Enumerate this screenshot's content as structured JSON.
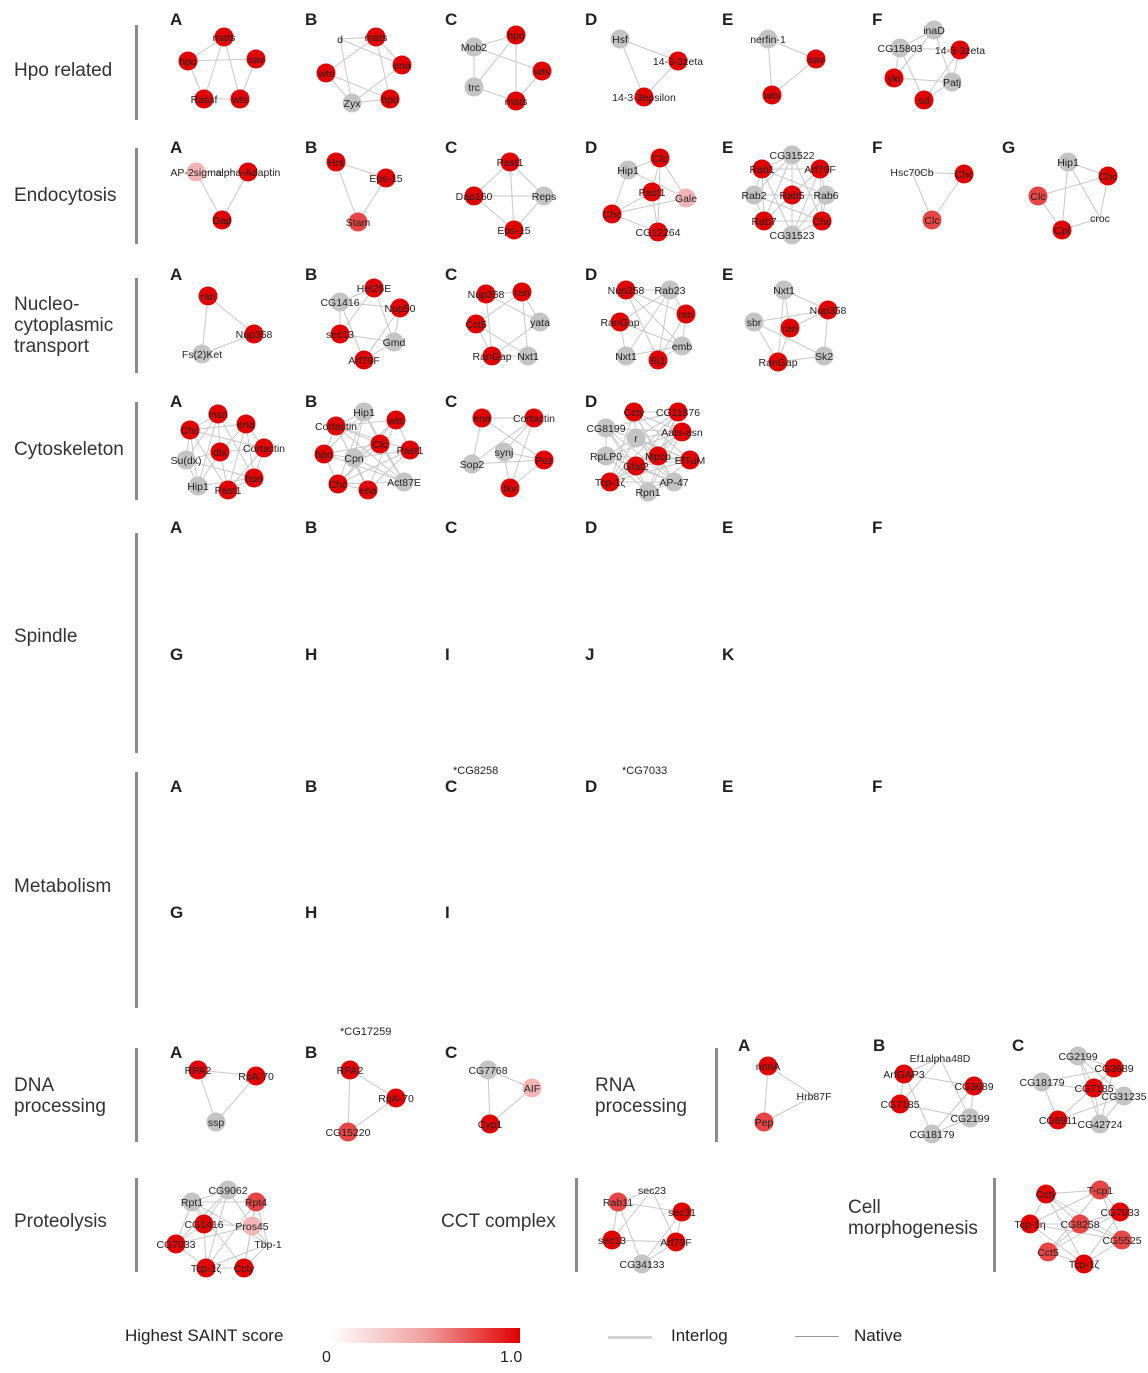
{
  "categories": {
    "hpo": "Hpo related",
    "endocytosis": "Endocytosis",
    "nucleo": [
      "Nucleo-",
      "cytoplasmic",
      "transport"
    ],
    "cytoskeleton": "Cytoskeleton",
    "spindle": "Spindle",
    "metabolism": "Metabolism",
    "dna": [
      "DNA",
      "processing"
    ],
    "rna": [
      "RNA",
      "processing"
    ],
    "proteolysis": "Proteolysis",
    "cct": "CCT complex",
    "cellmorph": [
      "Cell",
      "morphogenesis"
    ]
  },
  "panel_letters": {
    "hpo": [
      "A",
      "B",
      "C",
      "D",
      "E",
      "F"
    ],
    "endocytosis": [
      "A",
      "B",
      "C",
      "D",
      "E",
      "F",
      "G"
    ],
    "nucleo": [
      "A",
      "B",
      "C",
      "D",
      "E"
    ],
    "cytoskeleton": [
      "A",
      "B",
      "C",
      "D"
    ],
    "spindle1": [
      "A",
      "B",
      "C",
      "D",
      "E",
      "F"
    ],
    "spindle2": [
      "G",
      "H",
      "I",
      "J",
      "K"
    ],
    "metab1": [
      "A",
      "B",
      "C",
      "D",
      "E",
      "F"
    ],
    "metab2": [
      "G",
      "H",
      "I"
    ],
    "dna": [
      "A",
      "B",
      "C"
    ],
    "rna": [
      "A",
      "B",
      "C"
    ]
  },
  "footnotes": {
    "spindle_I": "*CG8258",
    "spindle_J": "*CG7033",
    "metab_H": "*CG17259"
  },
  "networks": [
    {
      "id": "hpo-A",
      "nodes": [
        [
          "mats",
          "s"
        ],
        [
          "hpo",
          "s"
        ],
        [
          "sav",
          "s"
        ],
        [
          "Rassf",
          "s"
        ],
        [
          "wts",
          "s"
        ]
      ]
    },
    {
      "id": "hpo-B",
      "nodes": [
        [
          "d",
          "n"
        ],
        [
          "mats",
          "s"
        ],
        [
          "wts",
          "s"
        ],
        [
          "ena",
          "s"
        ],
        [
          "Zyx",
          "g"
        ],
        [
          "hpo",
          "s"
        ]
      ]
    },
    {
      "id": "hpo-C",
      "nodes": [
        [
          "hpo",
          "s"
        ],
        [
          "Mob2",
          "g"
        ],
        [
          "wts",
          "s"
        ],
        [
          "trc",
          "g"
        ],
        [
          "mats",
          "s"
        ]
      ]
    },
    {
      "id": "hpo-D",
      "nodes": [
        [
          "Hsf",
          "g"
        ],
        [
          "14-3-3zeta",
          "s"
        ],
        [
          "14-3-3epsilon",
          "s"
        ]
      ]
    },
    {
      "id": "hpo-E",
      "nodes": [
        [
          "nerfin-1",
          "g"
        ],
        [
          "sav",
          "s"
        ],
        [
          "wts",
          "s"
        ]
      ]
    },
    {
      "id": "hpo-F",
      "nodes": [
        [
          "inaD",
          "g"
        ],
        [
          "CG15803",
          "g"
        ],
        [
          "14-3-3zeta",
          "s"
        ],
        [
          "yki",
          "s"
        ],
        [
          "Patj",
          "g"
        ],
        [
          "sd",
          "s"
        ]
      ]
    },
    {
      "id": "endo-A",
      "nodes": [
        [
          "AP-2sigma",
          "l"
        ],
        [
          "alpha-Adaptin",
          "s"
        ],
        [
          "Dap",
          "s"
        ]
      ]
    },
    {
      "id": "endo-B",
      "nodes": [
        [
          "Hrs",
          "s"
        ],
        [
          "Eps-15",
          "s"
        ],
        [
          "Stam",
          "m"
        ]
      ]
    },
    {
      "id": "endo-C",
      "nodes": [
        [
          "Past1",
          "s"
        ],
        [
          "Dap160",
          "s"
        ],
        [
          "Reps",
          "g"
        ],
        [
          "Eps-15",
          "s"
        ]
      ]
    },
    {
      "id": "endo-D",
      "nodes": [
        [
          "Hip1",
          "g"
        ],
        [
          "Clc",
          "s"
        ],
        [
          "Past1",
          "s"
        ],
        [
          "Gale",
          "l"
        ],
        [
          "Chc",
          "s"
        ],
        [
          "CG12264",
          "s"
        ]
      ]
    },
    {
      "id": "endo-E",
      "nodes": [
        [
          "CG31522",
          "g"
        ],
        [
          "Rab1",
          "s"
        ],
        [
          "Arf79F",
          "s"
        ],
        [
          "Rab2",
          "g"
        ],
        [
          "Rab5",
          "s"
        ],
        [
          "Rab6",
          "g"
        ],
        [
          "Rab7",
          "s"
        ],
        [
          "Chc",
          "s"
        ],
        [
          "CG31523",
          "g"
        ]
      ]
    },
    {
      "id": "endo-F",
      "nodes": [
        [
          "Hsc70Cb",
          "n"
        ],
        [
          "Chc",
          "s"
        ],
        [
          "Clc",
          "m"
        ]
      ]
    },
    {
      "id": "endo-G",
      "nodes": [
        [
          "Hip1",
          "g"
        ],
        [
          "Chc",
          "s"
        ],
        [
          "Clc",
          "m"
        ],
        [
          "croc",
          "n"
        ],
        [
          "Cpl",
          "s"
        ]
      ]
    },
    {
      "id": "nuc-A",
      "nodes": [
        [
          "ran",
          "s"
        ],
        [
          "Nup358",
          "s"
        ],
        [
          "Fs(2)Ket",
          "g"
        ]
      ]
    },
    {
      "id": "nuc-B",
      "nodes": [
        [
          "Hel25E",
          "s"
        ],
        [
          "CG1416",
          "g"
        ],
        [
          "Nup50",
          "s"
        ],
        [
          "sec13",
          "s"
        ],
        [
          "Gmd",
          "g"
        ],
        [
          "Arf79F",
          "s"
        ]
      ]
    },
    {
      "id": "nuc-C",
      "nodes": [
        [
          "Nup358",
          "s"
        ],
        [
          "ran",
          "s"
        ],
        [
          "Cct5",
          "s"
        ],
        [
          "yata",
          "g"
        ],
        [
          "RanGap",
          "s"
        ],
        [
          "Nxt1",
          "g"
        ]
      ]
    },
    {
      "id": "nuc-D",
      "nodes": [
        [
          "Nup358",
          "s"
        ],
        [
          "Rab23",
          "g"
        ],
        [
          "RanGap",
          "s"
        ],
        [
          "ran",
          "s"
        ],
        [
          "emb",
          "g"
        ],
        [
          "Nxt1",
          "g"
        ],
        [
          "Bj1",
          "s"
        ]
      ]
    },
    {
      "id": "nuc-E",
      "nodes": [
        [
          "Nxt1",
          "g"
        ],
        [
          "Nup358",
          "s"
        ],
        [
          "sbr",
          "g"
        ],
        [
          "ran",
          "s"
        ],
        [
          "RanGap",
          "s"
        ],
        [
          "Sk2",
          "g"
        ]
      ]
    },
    {
      "id": "cyto-A",
      "nodes": [
        [
          "msn",
          "s"
        ],
        [
          "Chc",
          "s"
        ],
        [
          "ena",
          "s"
        ],
        [
          "Su(dx)",
          "g"
        ],
        [
          "dlx",
          "s"
        ],
        [
          "Cortactin",
          "s"
        ],
        [
          "Hip1",
          "g"
        ],
        [
          "hpo",
          "s"
        ],
        [
          "Past1",
          "s"
        ]
      ]
    },
    {
      "id": "cyto-B",
      "nodes": [
        [
          "Hip1",
          "g"
        ],
        [
          "Cortactin",
          "s"
        ],
        [
          "wts",
          "s"
        ],
        [
          "Clc",
          "s"
        ],
        [
          "Cpn",
          "g"
        ],
        [
          "Past1",
          "s"
        ],
        [
          "hpo",
          "s"
        ],
        [
          "Chc",
          "s"
        ],
        [
          "ena",
          "s"
        ],
        [
          "Act87E",
          "g"
        ]
      ]
    },
    {
      "id": "cyto-C",
      "nodes": [
        [
          "ena",
          "s"
        ],
        [
          "Cortactin",
          "s"
        ],
        [
          "synj",
          "g"
        ],
        [
          "Sop2",
          "g"
        ],
        [
          "Pez",
          "s"
        ],
        [
          "tkv",
          "s"
        ]
      ]
    },
    {
      "id": "cyto-D",
      "nodes": [
        [
          "Ccty",
          "s"
        ],
        [
          "CG11876",
          "s"
        ],
        [
          "CG8199",
          "g"
        ],
        [
          "r",
          "g"
        ],
        [
          "Aats-asn",
          "s"
        ],
        [
          "RpLP0",
          "g"
        ],
        [
          "Mpcp",
          "s"
        ],
        [
          "EfTuM",
          "s"
        ],
        [
          "Gfat2",
          "s"
        ],
        [
          "Tcp-1ζ",
          "s"
        ],
        [
          "AP-47",
          "g"
        ],
        [
          "Rpn1",
          "g"
        ]
      ]
    },
    {
      "id": "dna-A",
      "nodes": [
        [
          "RPA2",
          "s"
        ],
        [
          "RpA-70",
          "s"
        ],
        [
          "ssp",
          "g"
        ]
      ]
    },
    {
      "id": "dna-B",
      "nodes": [
        [
          "RPA2",
          "s"
        ],
        [
          "RpA-70",
          "s"
        ],
        [
          "CG15220",
          "m"
        ]
      ]
    },
    {
      "id": "dna-C",
      "nodes": [
        [
          "CG7768",
          "g"
        ],
        [
          "AIF",
          "l"
        ],
        [
          "Cyp1",
          "s"
        ]
      ]
    },
    {
      "id": "rna-A",
      "nodes": [
        [
          "nonA",
          "s"
        ],
        [
          "Hrb87F",
          "n"
        ],
        [
          "Pep",
          "m"
        ]
      ]
    },
    {
      "id": "rna-B",
      "nodes": [
        [
          "Ef1alpha48D",
          "n"
        ],
        [
          "ArfGAP3",
          "s"
        ],
        [
          "CG3689",
          "s"
        ],
        [
          "CG7185",
          "s"
        ],
        [
          "CG2199",
          "g"
        ],
        [
          "CG18179",
          "g"
        ]
      ]
    },
    {
      "id": "rna-C",
      "nodes": [
        [
          "CG2199",
          "g"
        ],
        [
          "CG3689",
          "s"
        ],
        [
          "CG18179",
          "g"
        ],
        [
          "CG7185",
          "s"
        ],
        [
          "CG31235",
          "g"
        ],
        [
          "CG6911",
          "s"
        ],
        [
          "CG42724",
          "g"
        ]
      ]
    },
    {
      "id": "prot",
      "nodes": [
        [
          "CG9062",
          "g"
        ],
        [
          "Rpt1",
          "g"
        ],
        [
          "Rpt4",
          "m"
        ],
        [
          "CG1416",
          "s"
        ],
        [
          "Pros45",
          "l"
        ],
        [
          "Tbp-1",
          "n"
        ],
        [
          "CG7033",
          "s"
        ],
        [
          "Tcp-1ζ",
          "s"
        ],
        [
          "Ccty",
          "s"
        ]
      ]
    },
    {
      "id": "cct",
      "nodes": [
        [
          "sec23",
          "n"
        ],
        [
          "Rab11",
          "m"
        ],
        [
          "sec31",
          "s"
        ],
        [
          "sec13",
          "s"
        ],
        [
          "Arf79F",
          "s"
        ],
        [
          "CG34133",
          "g"
        ]
      ]
    },
    {
      "id": "cellmorph",
      "nodes": [
        [
          "Ccty",
          "s"
        ],
        [
          "T-cp1",
          "m"
        ],
        [
          "CG7033",
          "s"
        ],
        [
          "Tcp-1η",
          "s"
        ],
        [
          "CG8258",
          "m"
        ],
        [
          "Cct5",
          "m"
        ],
        [
          "CG5525",
          "m"
        ],
        [
          "Tcp-1ζ",
          "s"
        ]
      ]
    }
  ],
  "legend": {
    "title": "Highest SAINT score",
    "min": "0",
    "max": "1.0",
    "interlog": "Interlog",
    "native": "Native"
  },
  "colors": {
    "strong": "#e00000",
    "medium": "#e84545",
    "light": "#f3b5b5",
    "gray": "#c4c4c4",
    "bar": "#8a8a8a"
  }
}
